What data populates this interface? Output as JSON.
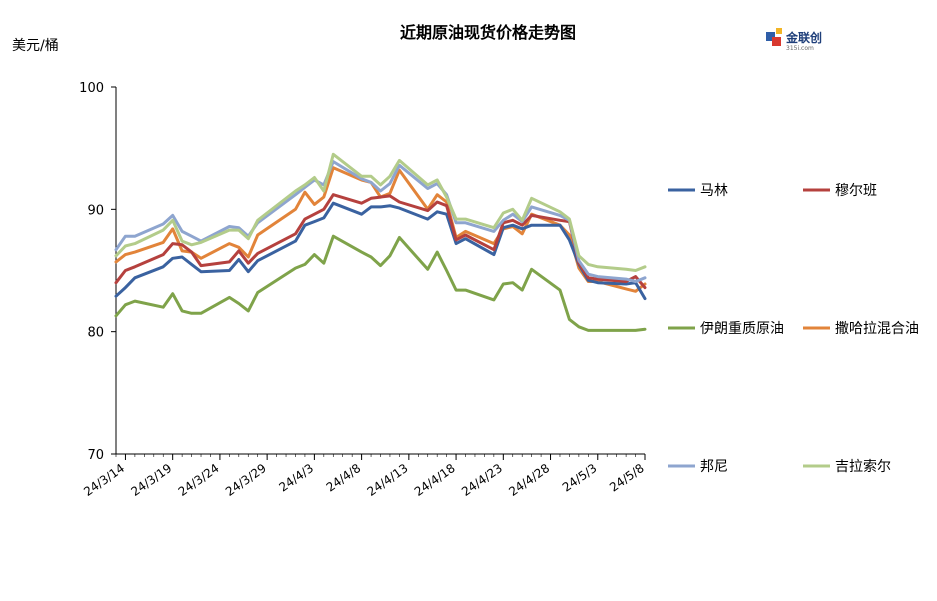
{
  "chart_data": {
    "type": "line",
    "title": "近期原油现货价格走势图",
    "ylabel": "美元/桶",
    "ylim": [
      70,
      100
    ],
    "yticks": [
      70,
      80,
      90,
      100
    ],
    "x": [
      "2024-03-13",
      "2024-03-14",
      "2024-03-15",
      "2024-03-18",
      "2024-03-19",
      "2024-03-20",
      "2024-03-21",
      "2024-03-22",
      "2024-03-25",
      "2024-03-26",
      "2024-03-27",
      "2024-03-28",
      "2024-04-01",
      "2024-04-02",
      "2024-04-03",
      "2024-04-04",
      "2024-04-05",
      "2024-04-08",
      "2024-04-09",
      "2024-04-10",
      "2024-04-11",
      "2024-04-12",
      "2024-04-15",
      "2024-04-16",
      "2024-04-17",
      "2024-04-18",
      "2024-04-19",
      "2024-04-22",
      "2024-04-23",
      "2024-04-24",
      "2024-04-25",
      "2024-04-26",
      "2024-04-29",
      "2024-04-30",
      "2024-05-01",
      "2024-05-02",
      "2024-05-03",
      "2024-05-06",
      "2024-05-07",
      "2024-05-08"
    ],
    "xtick_labels": [
      "24/3/14",
      "24/3/19",
      "24/3/24",
      "24/3/29",
      "24/4/3",
      "24/4/8",
      "24/4/13",
      "24/4/18",
      "24/4/23",
      "24/4/28",
      "24/5/3",
      "24/5/8"
    ],
    "xtick_dates": [
      "2024-03-14",
      "2024-03-19",
      "2024-03-24",
      "2024-03-29",
      "2024-04-03",
      "2024-04-08",
      "2024-04-13",
      "2024-04-18",
      "2024-04-23",
      "2024-04-28",
      "2024-05-03",
      "2024-05-08"
    ],
    "x_range": [
      "2024-03-13",
      "2024-05-08"
    ],
    "grid": false,
    "legend_position": "right",
    "series": [
      {
        "name": "马林",
        "color": "#3a62a0",
        "values": [
          82.9,
          83.6,
          84.4,
          85.3,
          86.0,
          86.1,
          85.5,
          84.9,
          85.0,
          85.9,
          84.9,
          85.8,
          87.4,
          88.7,
          89.0,
          89.3,
          90.5,
          89.6,
          90.2,
          90.2,
          90.3,
          90.1,
          89.2,
          89.8,
          89.6,
          87.2,
          87.6,
          86.3,
          88.5,
          88.7,
          88.4,
          88.7,
          88.7,
          87.5,
          85.5,
          84.2,
          84.0,
          83.9,
          84.0,
          82.7
        ]
      },
      {
        "name": "穆尔班",
        "color": "#b5413e",
        "values": [
          84.0,
          85.0,
          85.3,
          86.3,
          87.2,
          87.1,
          86.5,
          85.4,
          85.7,
          86.6,
          85.6,
          86.4,
          88.0,
          89.2,
          89.6,
          90.0,
          91.2,
          90.5,
          90.9,
          91.0,
          91.1,
          90.6,
          89.9,
          90.6,
          90.3,
          87.5,
          87.9,
          86.7,
          88.9,
          89.1,
          88.7,
          89.5,
          89.1,
          89.0,
          85.6,
          84.4,
          84.3,
          84.1,
          84.5,
          83.6
        ]
      },
      {
        "name": "伊朗重质原油",
        "color": "#7fa34a",
        "values": [
          81.3,
          82.2,
          82.5,
          82.0,
          83.1,
          81.7,
          81.5,
          81.5,
          82.8,
          82.3,
          81.7,
          83.2,
          85.2,
          85.5,
          86.3,
          85.6,
          87.8,
          86.5,
          86.1,
          85.4,
          86.2,
          87.7,
          85.1,
          86.5,
          85.0,
          83.4,
          83.4,
          82.6,
          83.9,
          84.0,
          83.4,
          85.1,
          83.4,
          81.0,
          80.4,
          80.1,
          80.1,
          80.1,
          80.1,
          80.2
        ]
      },
      {
        "name": "撒哈拉混合油",
        "color": "#e2843a",
        "values": [
          85.7,
          86.3,
          86.5,
          87.3,
          88.4,
          86.6,
          86.5,
          86.0,
          87.2,
          86.9,
          86.1,
          87.9,
          90.0,
          91.4,
          90.4,
          91.0,
          93.4,
          92.4,
          92.2,
          91.0,
          91.3,
          93.2,
          90.0,
          91.2,
          90.6,
          87.7,
          88.2,
          87.2,
          88.4,
          88.6,
          88.0,
          89.6,
          88.7,
          87.9,
          85.2,
          84.1,
          84.1,
          83.5,
          83.3,
          83.9
        ]
      },
      {
        "name": "邦尼",
        "color": "#8ea5cf",
        "values": [
          86.7,
          87.8,
          87.8,
          88.8,
          89.5,
          88.2,
          87.8,
          87.4,
          88.6,
          88.5,
          87.8,
          88.9,
          91.2,
          91.8,
          92.4,
          92.0,
          93.9,
          92.5,
          92.2,
          91.5,
          92.1,
          93.6,
          91.7,
          92.1,
          91.2,
          88.9,
          88.9,
          88.2,
          89.1,
          89.6,
          89.0,
          90.2,
          89.5,
          89.1,
          85.8,
          84.7,
          84.5,
          84.3,
          84.1,
          84.4
        ]
      },
      {
        "name": "吉拉索尔",
        "color": "#b3cc8a",
        "values": [
          86.2,
          87.0,
          87.2,
          88.3,
          89.1,
          87.4,
          87.1,
          87.3,
          88.3,
          88.3,
          87.6,
          89.1,
          91.5,
          92.0,
          92.6,
          91.5,
          94.5,
          92.7,
          92.7,
          92.0,
          92.7,
          94.0,
          92.0,
          92.4,
          91.0,
          89.2,
          89.2,
          88.5,
          89.7,
          90.0,
          89.1,
          90.9,
          89.8,
          89.2,
          86.2,
          85.5,
          85.3,
          85.1,
          85.0,
          85.3
        ]
      }
    ]
  },
  "logo": {
    "text": "金联创",
    "sub": "315i.com"
  }
}
